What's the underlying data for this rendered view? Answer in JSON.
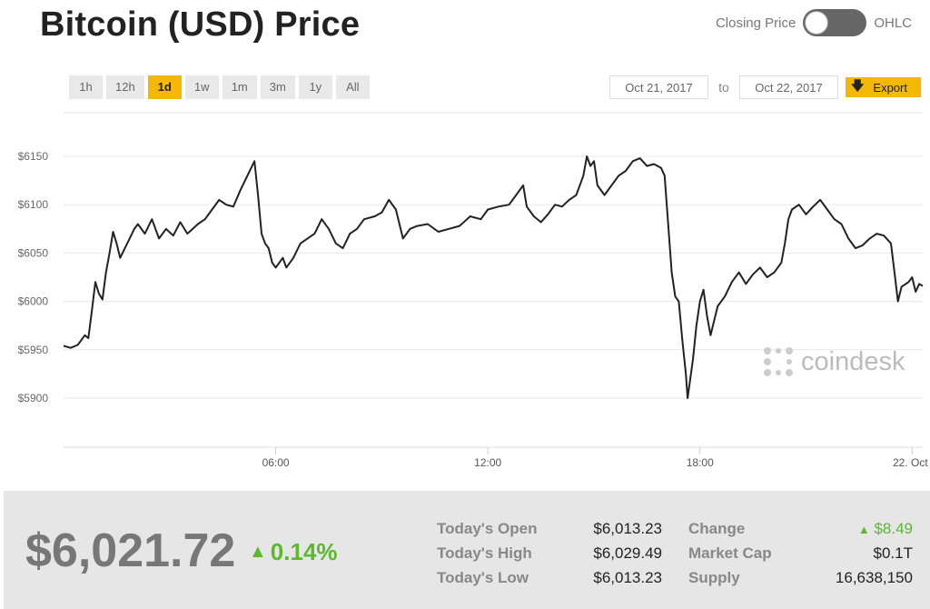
{
  "header": {
    "title": "Bitcoin (USD) Price"
  },
  "toggle": {
    "left_label": "Closing Price",
    "right_label": "OHLC"
  },
  "ranges": [
    "1h",
    "12h",
    "1d",
    "1w",
    "1m",
    "3m",
    "1y",
    "All"
  ],
  "active_range": "1d",
  "date_range": {
    "from": "Oct 21, 2017",
    "to_label": "to",
    "to": "Oct 22, 2017",
    "export_label": "Export"
  },
  "watermark": {
    "text": "coindesk"
  },
  "colors": {
    "accent": "#f5b800",
    "line": "#222222",
    "positive": "#5cb82d"
  },
  "chart_data": {
    "type": "line",
    "y_ticks": [
      "$5900",
      "$5950",
      "$6000",
      "$6050",
      "$6100",
      "$6150"
    ],
    "x_ticks": [
      "06:00",
      "12:00",
      "18:00",
      "22. Oct"
    ],
    "ylim": [
      5900,
      6150
    ],
    "x_hours": [
      0,
      24.3
    ],
    "x_hour_ticks": [
      6,
      12,
      18,
      24
    ],
    "series": [
      {
        "points": [
          [
            0.0,
            5954
          ],
          [
            0.2,
            5952
          ],
          [
            0.4,
            5955
          ],
          [
            0.5,
            5960
          ],
          [
            0.6,
            5965
          ],
          [
            0.7,
            5962
          ],
          [
            0.8,
            5990
          ],
          [
            0.9,
            6020
          ],
          [
            1.0,
            6008
          ],
          [
            1.1,
            6002
          ],
          [
            1.2,
            6030
          ],
          [
            1.3,
            6050
          ],
          [
            1.4,
            6072
          ],
          [
            1.5,
            6060
          ],
          [
            1.6,
            6045
          ],
          [
            1.8,
            6060
          ],
          [
            2.0,
            6075
          ],
          [
            2.1,
            6080
          ],
          [
            2.3,
            6070
          ],
          [
            2.5,
            6085
          ],
          [
            2.7,
            6065
          ],
          [
            2.9,
            6075
          ],
          [
            3.1,
            6068
          ],
          [
            3.3,
            6082
          ],
          [
            3.5,
            6070
          ],
          [
            3.8,
            6080
          ],
          [
            4.0,
            6085
          ],
          [
            4.2,
            6095
          ],
          [
            4.4,
            6105
          ],
          [
            4.6,
            6100
          ],
          [
            4.8,
            6098
          ],
          [
            5.0,
            6115
          ],
          [
            5.2,
            6130
          ],
          [
            5.4,
            6145
          ],
          [
            5.5,
            6110
          ],
          [
            5.6,
            6070
          ],
          [
            5.7,
            6060
          ],
          [
            5.8,
            6055
          ],
          [
            5.9,
            6040
          ],
          [
            6.0,
            6035
          ],
          [
            6.2,
            6045
          ],
          [
            6.3,
            6035
          ],
          [
            6.5,
            6045
          ],
          [
            6.7,
            6060
          ],
          [
            6.9,
            6065
          ],
          [
            7.1,
            6070
          ],
          [
            7.3,
            6085
          ],
          [
            7.5,
            6075
          ],
          [
            7.7,
            6060
          ],
          [
            7.9,
            6055
          ],
          [
            8.1,
            6070
          ],
          [
            8.3,
            6075
          ],
          [
            8.5,
            6085
          ],
          [
            8.8,
            6088
          ],
          [
            9.0,
            6092
          ],
          [
            9.2,
            6105
          ],
          [
            9.4,
            6095
          ],
          [
            9.6,
            6065
          ],
          [
            9.8,
            6075
          ],
          [
            10.0,
            6078
          ],
          [
            10.3,
            6080
          ],
          [
            10.6,
            6072
          ],
          [
            10.9,
            6075
          ],
          [
            11.2,
            6078
          ],
          [
            11.5,
            6088
          ],
          [
            11.8,
            6085
          ],
          [
            12.0,
            6095
          ],
          [
            12.3,
            6098
          ],
          [
            12.6,
            6100
          ],
          [
            12.8,
            6110
          ],
          [
            13.0,
            6120
          ],
          [
            13.1,
            6098
          ],
          [
            13.3,
            6088
          ],
          [
            13.5,
            6082
          ],
          [
            13.7,
            6090
          ],
          [
            13.9,
            6100
          ],
          [
            14.1,
            6098
          ],
          [
            14.3,
            6105
          ],
          [
            14.5,
            6110
          ],
          [
            14.7,
            6130
          ],
          [
            14.8,
            6150
          ],
          [
            14.9,
            6140
          ],
          [
            15.0,
            6145
          ],
          [
            15.1,
            6120
          ],
          [
            15.3,
            6110
          ],
          [
            15.5,
            6120
          ],
          [
            15.7,
            6130
          ],
          [
            15.9,
            6135
          ],
          [
            16.1,
            6145
          ],
          [
            16.3,
            6148
          ],
          [
            16.5,
            6140
          ],
          [
            16.7,
            6142
          ],
          [
            16.9,
            6138
          ],
          [
            17.0,
            6130
          ],
          [
            17.1,
            6080
          ],
          [
            17.2,
            6030
          ],
          [
            17.3,
            6005
          ],
          [
            17.4,
            6000
          ],
          [
            17.5,
            5960
          ],
          [
            17.6,
            5925
          ],
          [
            17.65,
            5900
          ],
          [
            17.8,
            5940
          ],
          [
            17.9,
            5975
          ],
          [
            18.0,
            6000
          ],
          [
            18.1,
            6012
          ],
          [
            18.2,
            5985
          ],
          [
            18.3,
            5965
          ],
          [
            18.4,
            5980
          ],
          [
            18.5,
            5995
          ],
          [
            18.7,
            6005
          ],
          [
            18.9,
            6020
          ],
          [
            19.1,
            6030
          ],
          [
            19.3,
            6018
          ],
          [
            19.5,
            6028
          ],
          [
            19.7,
            6035
          ],
          [
            19.9,
            6025
          ],
          [
            20.1,
            6030
          ],
          [
            20.3,
            6040
          ],
          [
            20.4,
            6060
          ],
          [
            20.5,
            6085
          ],
          [
            20.6,
            6095
          ],
          [
            20.8,
            6100
          ],
          [
            21.0,
            6090
          ],
          [
            21.2,
            6098
          ],
          [
            21.4,
            6105
          ],
          [
            21.6,
            6095
          ],
          [
            21.8,
            6085
          ],
          [
            22.0,
            6080
          ],
          [
            22.2,
            6065
          ],
          [
            22.4,
            6055
          ],
          [
            22.6,
            6058
          ],
          [
            22.8,
            6065
          ],
          [
            23.0,
            6070
          ],
          [
            23.2,
            6068
          ],
          [
            23.4,
            6060
          ],
          [
            23.5,
            6030
          ],
          [
            23.6,
            6000
          ],
          [
            23.7,
            6015
          ],
          [
            23.9,
            6020
          ],
          [
            24.0,
            6025
          ],
          [
            24.1,
            6010
          ],
          [
            24.2,
            6018
          ],
          [
            24.3,
            6016
          ]
        ]
      }
    ]
  },
  "summary": {
    "price": "$6,021.72",
    "change_pct": "0.14%",
    "open_label": "Today's Open",
    "open_value": "$6,013.23",
    "high_label": "Today's High",
    "high_value": "$6,029.49",
    "low_label": "Today's Low",
    "low_value": "$6,013.23",
    "change_label": "Change",
    "change_value": "$8.49",
    "mcap_label": "Market Cap",
    "mcap_value": "$0.1T",
    "supply_label": "Supply",
    "supply_value": "16,638,150"
  }
}
